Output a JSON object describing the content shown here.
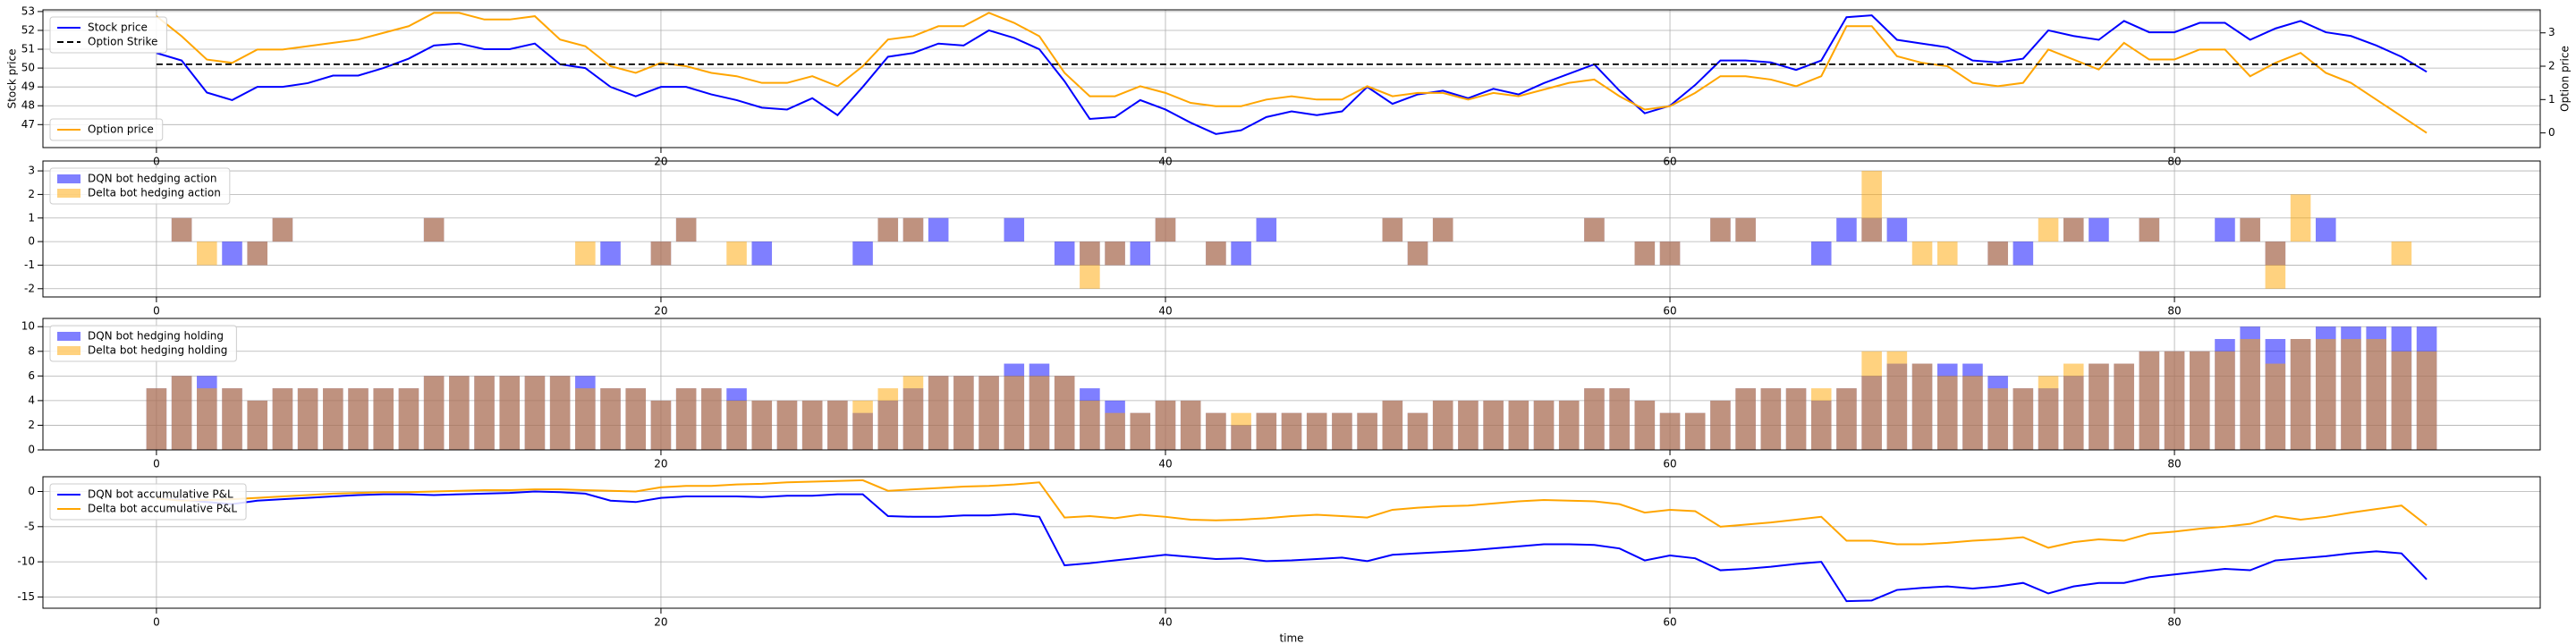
{
  "chart_data": [
    {
      "type": "line",
      "x": [
        0,
        1,
        2,
        3,
        4,
        5,
        6,
        7,
        8,
        9,
        10,
        11,
        12,
        13,
        14,
        15,
        16,
        17,
        18,
        19,
        20,
        21,
        22,
        23,
        24,
        25,
        26,
        27,
        28,
        29,
        30,
        31,
        32,
        33,
        34,
        35,
        36,
        37,
        38,
        39,
        40,
        41,
        42,
        43,
        44,
        45,
        46,
        47,
        48,
        49,
        50,
        51,
        52,
        53,
        54,
        55,
        56,
        57,
        58,
        59,
        60,
        61,
        62,
        63,
        64,
        65,
        66,
        67,
        68,
        69,
        70,
        71,
        72,
        73,
        74,
        75,
        76,
        77,
        78,
        79,
        80,
        81,
        82,
        83,
        84,
        85,
        86,
        87,
        88,
        89,
        90
      ],
      "ylabel": "Stock price",
      "y2label": "Option price",
      "xlim": [
        -4.5,
        94.5
      ],
      "xticks": [
        0,
        20,
        40,
        60,
        80
      ],
      "ylim": [
        45.78,
        53.09
      ],
      "yticks": [
        47,
        48,
        49,
        50,
        51,
        52,
        53
      ],
      "y2lim": [
        -0.44,
        3.69
      ],
      "y2ticks": [
        0,
        1,
        2,
        3
      ],
      "grid": true,
      "legend": "upper left",
      "legend2": "lower left",
      "series": [
        {
          "name": "Stock price",
          "color": "blue",
          "values": [
            50.8,
            50.4,
            48.7,
            48.3,
            49.0,
            49.0,
            49.2,
            49.6,
            49.6,
            50.0,
            50.5,
            51.2,
            51.3,
            51.0,
            51.0,
            51.3,
            50.2,
            50.0,
            49.0,
            48.5,
            49.0,
            49.0,
            48.6,
            48.3,
            47.9,
            47.8,
            48.4,
            47.5,
            49.0,
            50.6,
            50.8,
            51.3,
            51.2,
            52.0,
            51.6,
            51.0,
            49.3,
            47.3,
            47.4,
            48.3,
            47.8,
            47.1,
            46.5,
            46.7,
            47.4,
            47.7,
            47.5,
            47.7,
            49.0,
            48.1,
            48.6,
            48.8,
            48.4,
            48.9,
            48.6,
            49.2,
            49.7,
            50.2,
            48.8,
            47.6,
            48.0,
            49.1,
            50.4,
            50.4,
            50.3,
            49.9,
            50.4,
            52.7,
            52.8,
            51.5,
            51.3,
            51.1,
            50.4,
            50.3,
            50.5,
            52.0,
            51.7,
            51.5,
            52.5,
            51.9,
            51.9,
            52.4,
            52.4,
            51.5,
            52.1,
            52.5,
            51.9,
            51.7,
            51.2,
            50.6,
            49.8
          ]
        },
        {
          "name": "Option price",
          "color": "orange",
          "axis": "y2",
          "values": [
            3.5,
            2.9,
            2.2,
            2.1,
            2.5,
            2.5,
            2.6,
            2.7,
            2.8,
            3.0,
            3.2,
            3.6,
            3.6,
            3.4,
            3.4,
            3.5,
            2.8,
            2.6,
            2.0,
            1.8,
            2.1,
            2.0,
            1.8,
            1.7,
            1.5,
            1.5,
            1.7,
            1.4,
            2.0,
            2.8,
            2.9,
            3.2,
            3.2,
            3.6,
            3.3,
            2.9,
            1.8,
            1.1,
            1.1,
            1.4,
            1.2,
            0.9,
            0.8,
            0.8,
            1.0,
            1.1,
            1.0,
            1.0,
            1.4,
            1.1,
            1.2,
            1.2,
            1.0,
            1.2,
            1.1,
            1.3,
            1.5,
            1.6,
            1.1,
            0.7,
            0.8,
            1.2,
            1.7,
            1.7,
            1.6,
            1.4,
            1.7,
            3.2,
            3.2,
            2.3,
            2.1,
            2.0,
            1.5,
            1.4,
            1.5,
            2.5,
            2.2,
            1.9,
            2.7,
            2.2,
            2.2,
            2.5,
            2.5,
            1.7,
            2.1,
            2.4,
            1.8,
            1.5,
            1.0,
            0.5,
            0.0
          ]
        }
      ],
      "hlines": [
        {
          "name": "Option Strike",
          "value": 50.2,
          "xmin": 0,
          "xmax": 90,
          "color": "black",
          "style": "dashed"
        }
      ]
    },
    {
      "type": "bar",
      "x": [
        0,
        1,
        2,
        3,
        4,
        5,
        6,
        7,
        8,
        9,
        10,
        11,
        12,
        13,
        14,
        15,
        16,
        17,
        18,
        19,
        20,
        21,
        22,
        23,
        24,
        25,
        26,
        27,
        28,
        29,
        30,
        31,
        32,
        33,
        34,
        35,
        36,
        37,
        38,
        39,
        40,
        41,
        42,
        43,
        44,
        45,
        46,
        47,
        48,
        49,
        50,
        51,
        52,
        53,
        54,
        55,
        56,
        57,
        58,
        59,
        60,
        61,
        62,
        63,
        64,
        65,
        66,
        67,
        68,
        69,
        70,
        71,
        72,
        73,
        74,
        75,
        76,
        77,
        78,
        79,
        80,
        81,
        82,
        83,
        84,
        85,
        86,
        87,
        88,
        89,
        90
      ],
      "xlim": [
        -4.5,
        94.5
      ],
      "xticks": [
        0,
        20,
        40,
        60,
        80
      ],
      "ylim": [
        -2.35,
        3.42
      ],
      "yticks": [
        -2,
        -1,
        0,
        1,
        2,
        3
      ],
      "grid": true,
      "legend": "upper left",
      "alpha": 0.5,
      "bar_width": 0.8,
      "series": [
        {
          "name": "DQN bot hedging action",
          "color": "blue",
          "values": [
            0,
            1,
            0,
            -1,
            -1,
            1,
            0,
            0,
            0,
            0,
            0,
            1,
            0,
            0,
            0,
            0,
            0,
            0,
            -1,
            0,
            -1,
            1,
            0,
            0,
            -1,
            0,
            0,
            0,
            -1,
            1,
            1,
            1,
            0,
            0,
            1,
            0,
            -1,
            -1,
            -1,
            -1,
            1,
            0,
            -1,
            -1,
            1,
            0,
            0,
            0,
            0,
            1,
            -1,
            1,
            0,
            0,
            0,
            0,
            0,
            1,
            0,
            -1,
            -1,
            0,
            1,
            1,
            0,
            0,
            -1,
            1,
            1,
            1,
            0,
            0,
            0,
            -1,
            -1,
            0,
            1,
            1,
            0,
            1,
            0,
            0,
            1,
            1,
            -1,
            0,
            1,
            0,
            0,
            0,
            0
          ]
        },
        {
          "name": "Delta bot hedging action",
          "color": "orange",
          "values": [
            0,
            1,
            -1,
            0,
            -1,
            1,
            0,
            0,
            0,
            0,
            0,
            1,
            0,
            0,
            0,
            0,
            0,
            -1,
            0,
            0,
            -1,
            1,
            0,
            -1,
            0,
            0,
            0,
            0,
            0,
            1,
            1,
            0,
            0,
            0,
            0,
            0,
            0,
            -2,
            -1,
            0,
            1,
            0,
            -1,
            0,
            0,
            0,
            0,
            0,
            0,
            1,
            -1,
            1,
            0,
            0,
            0,
            0,
            0,
            1,
            0,
            -1,
            -1,
            0,
            1,
            1,
            0,
            0,
            0,
            0,
            3,
            0,
            -1,
            -1,
            0,
            -1,
            0,
            1,
            1,
            0,
            0,
            1,
            0,
            0,
            0,
            1,
            -2,
            2,
            0,
            0,
            0,
            -1,
            0
          ]
        }
      ]
    },
    {
      "type": "bar",
      "x": [
        0,
        1,
        2,
        3,
        4,
        5,
        6,
        7,
        8,
        9,
        10,
        11,
        12,
        13,
        14,
        15,
        16,
        17,
        18,
        19,
        20,
        21,
        22,
        23,
        24,
        25,
        26,
        27,
        28,
        29,
        30,
        31,
        32,
        33,
        34,
        35,
        36,
        37,
        38,
        39,
        40,
        41,
        42,
        43,
        44,
        45,
        46,
        47,
        48,
        49,
        50,
        51,
        52,
        53,
        54,
        55,
        56,
        57,
        58,
        59,
        60,
        61,
        62,
        63,
        64,
        65,
        66,
        67,
        68,
        69,
        70,
        71,
        72,
        73,
        74,
        75,
        76,
        77,
        78,
        79,
        80,
        81,
        82,
        83,
        84,
        85,
        86,
        87,
        88,
        89,
        90
      ],
      "xlim": [
        -4.5,
        94.5
      ],
      "xticks": [
        0,
        20,
        40,
        60,
        80
      ],
      "ylim": [
        0,
        10.67
      ],
      "yticks": [
        0,
        2,
        4,
        6,
        8,
        10
      ],
      "grid": true,
      "legend": "upper left",
      "alpha": 0.5,
      "bar_width": 0.8,
      "series": [
        {
          "name": "DQN bot hedging holding",
          "color": "blue",
          "values": [
            5,
            6,
            6,
            5,
            4,
            5,
            5,
            5,
            5,
            5,
            5,
            6,
            6,
            6,
            6,
            6,
            6,
            6,
            5,
            5,
            4,
            5,
            5,
            5,
            4,
            4,
            4,
            4,
            3,
            4,
            5,
            6,
            6,
            6,
            7,
            7,
            6,
            5,
            4,
            3,
            4,
            4,
            3,
            2,
            3,
            3,
            3,
            3,
            3,
            4,
            3,
            4,
            4,
            4,
            4,
            4,
            4,
            5,
            5,
            4,
            3,
            3,
            4,
            5,
            5,
            5,
            4,
            5,
            6,
            7,
            7,
            7,
            7,
            6,
            5,
            5,
            6,
            7,
            7,
            8,
            8,
            8,
            9,
            10,
            9,
            9,
            10,
            10,
            10,
            10,
            10
          ]
        },
        {
          "name": "Delta bot hedging holding",
          "color": "orange",
          "values": [
            5,
            6,
            5,
            5,
            4,
            5,
            5,
            5,
            5,
            5,
            5,
            6,
            6,
            6,
            6,
            6,
            6,
            5,
            5,
            5,
            4,
            5,
            5,
            4,
            4,
            4,
            4,
            4,
            4,
            5,
            6,
            6,
            6,
            6,
            6,
            6,
            6,
            4,
            3,
            3,
            4,
            4,
            3,
            3,
            3,
            3,
            3,
            3,
            3,
            4,
            3,
            4,
            4,
            4,
            4,
            4,
            4,
            5,
            5,
            4,
            3,
            3,
            4,
            5,
            5,
            5,
            5,
            5,
            8,
            8,
            7,
            6,
            6,
            5,
            5,
            6,
            7,
            7,
            7,
            8,
            8,
            8,
            8,
            9,
            7,
            9,
            9,
            9,
            9,
            8,
            8
          ]
        }
      ]
    },
    {
      "type": "line",
      "x": [
        0,
        1,
        2,
        3,
        4,
        5,
        6,
        7,
        8,
        9,
        10,
        11,
        12,
        13,
        14,
        15,
        16,
        17,
        18,
        19,
        20,
        21,
        22,
        23,
        24,
        25,
        26,
        27,
        28,
        29,
        30,
        31,
        32,
        33,
        34,
        35,
        36,
        37,
        38,
        39,
        40,
        41,
        42,
        43,
        44,
        45,
        46,
        47,
        48,
        49,
        50,
        51,
        52,
        53,
        54,
        55,
        56,
        57,
        58,
        59,
        60,
        61,
        62,
        63,
        64,
        65,
        66,
        67,
        68,
        69,
        70,
        71,
        72,
        73,
        74,
        75,
        76,
        77,
        78,
        79,
        80,
        81,
        82,
        83,
        84,
        85,
        86,
        87,
        88,
        89,
        90
      ],
      "xlabel": "time",
      "xlim": [
        -4.5,
        94.5
      ],
      "xticks": [
        0,
        20,
        40,
        60,
        80
      ],
      "ylim": [
        -16.6,
        2.1
      ],
      "yticks": [
        -15,
        -10,
        -5,
        0
      ],
      "grid": true,
      "legend": "upper left",
      "series": [
        {
          "name": "DQN bot accumulative P&L",
          "color": "blue",
          "values": [
            -1.0,
            -1.2,
            -1.5,
            -1.8,
            -1.3,
            -1.1,
            -0.9,
            -0.7,
            -0.5,
            -0.4,
            -0.4,
            -0.5,
            -0.4,
            -0.3,
            -0.2,
            0.0,
            -0.1,
            -0.3,
            -1.3,
            -1.5,
            -0.9,
            -0.7,
            -0.7,
            -0.7,
            -0.8,
            -0.6,
            -0.6,
            -0.4,
            -0.4,
            -3.5,
            -3.6,
            -3.6,
            -3.4,
            -3.4,
            -3.2,
            -3.6,
            -10.5,
            -10.2,
            -9.8,
            -9.4,
            -9.0,
            -9.3,
            -9.6,
            -9.5,
            -9.9,
            -9.8,
            -9.6,
            -9.4,
            -9.9,
            -9.0,
            -8.8,
            -8.6,
            -8.4,
            -8.1,
            -7.8,
            -7.5,
            -7.5,
            -7.6,
            -8.1,
            -9.8,
            -9.1,
            -9.5,
            -11.2,
            -11.0,
            -10.7,
            -10.3,
            -10.0,
            -15.6,
            -15.5,
            -14.0,
            -13.7,
            -13.5,
            -13.8,
            -13.5,
            -13.0,
            -14.5,
            -13.5,
            -13.0,
            -13.0,
            -12.2,
            -11.8,
            -11.4,
            -11.0,
            -11.2,
            -9.8,
            -9.5,
            -9.2,
            -8.8,
            -8.5,
            -8.8,
            -12.5
          ]
        },
        {
          "name": "Delta bot accumulative P&L",
          "color": "orange",
          "values": [
            -1.0,
            -1.3,
            -1.2,
            -1.1,
            -0.9,
            -0.7,
            -0.5,
            -0.3,
            -0.2,
            -0.1,
            -0.1,
            0.0,
            0.1,
            0.2,
            0.2,
            0.3,
            0.3,
            0.2,
            0.1,
            0.0,
            0.6,
            0.8,
            0.8,
            1.0,
            1.1,
            1.3,
            1.4,
            1.5,
            1.6,
            0.1,
            0.3,
            0.5,
            0.7,
            0.8,
            1.0,
            1.3,
            -3.7,
            -3.5,
            -3.8,
            -3.3,
            -3.6,
            -4.0,
            -4.1,
            -4.0,
            -3.8,
            -3.5,
            -3.3,
            -3.5,
            -3.7,
            -2.6,
            -2.3,
            -2.1,
            -2.0,
            -1.7,
            -1.4,
            -1.2,
            -1.3,
            -1.4,
            -1.8,
            -3.0,
            -2.6,
            -2.8,
            -5.0,
            -4.7,
            -4.4,
            -4.0,
            -3.6,
            -7.0,
            -7.0,
            -7.5,
            -7.5,
            -7.3,
            -7.0,
            -6.8,
            -6.5,
            -8.0,
            -7.2,
            -6.8,
            -7.0,
            -6.0,
            -5.7,
            -5.3,
            -5.0,
            -4.6,
            -3.5,
            -4.0,
            -3.6,
            -3.0,
            -2.5,
            -2.0,
            -4.8
          ]
        }
      ]
    }
  ]
}
